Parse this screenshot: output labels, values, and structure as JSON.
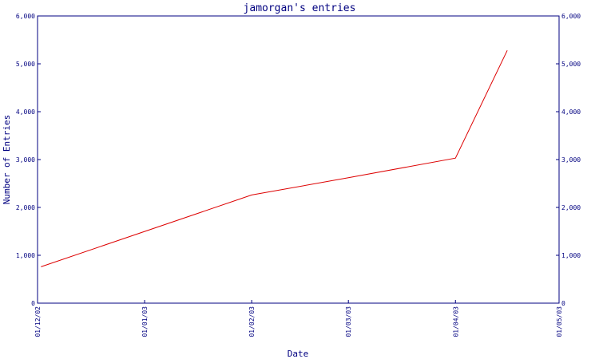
{
  "chart_data": {
    "type": "line",
    "title": "jamorgan's entries",
    "xlabel": "Date",
    "ylabel": "Number of Entries",
    "x_ticks": [
      {
        "value": "2002-12-01",
        "label": "01/12/02"
      },
      {
        "value": "2003-01-01",
        "label": "01/01/03"
      },
      {
        "value": "2003-02-01",
        "label": "01/02/03"
      },
      {
        "value": "2003-03-01",
        "label": "01/03/03"
      },
      {
        "value": "2003-04-01",
        "label": "01/04/03"
      },
      {
        "value": "2003-05-01",
        "label": "01/05/03"
      }
    ],
    "y_ticks": [
      {
        "value": 0,
        "label": "0"
      },
      {
        "value": 1000,
        "label": "1,000"
      },
      {
        "value": 2000,
        "label": "2,000"
      },
      {
        "value": 3000,
        "label": "3,000"
      },
      {
        "value": 4000,
        "label": "4,000"
      },
      {
        "value": 5000,
        "label": "5,000"
      },
      {
        "value": 6000,
        "label": "6,000"
      }
    ],
    "xlim": [
      "2002-12-01",
      "2003-05-01"
    ],
    "ylim": [
      0,
      6000
    ],
    "grid": false,
    "series": [
      {
        "color": "#dd0000",
        "points": [
          {
            "x": "2002-12-02",
            "y": 760
          },
          {
            "x": "2003-02-01",
            "y": 2260
          },
          {
            "x": "2003-03-01",
            "y": 2620
          },
          {
            "x": "2003-04-01",
            "y": 3030
          },
          {
            "x": "2003-04-16",
            "y": 5280
          }
        ]
      }
    ],
    "colors": {
      "axis": "#000080",
      "text": "#000080",
      "line": "#dd0000"
    }
  }
}
